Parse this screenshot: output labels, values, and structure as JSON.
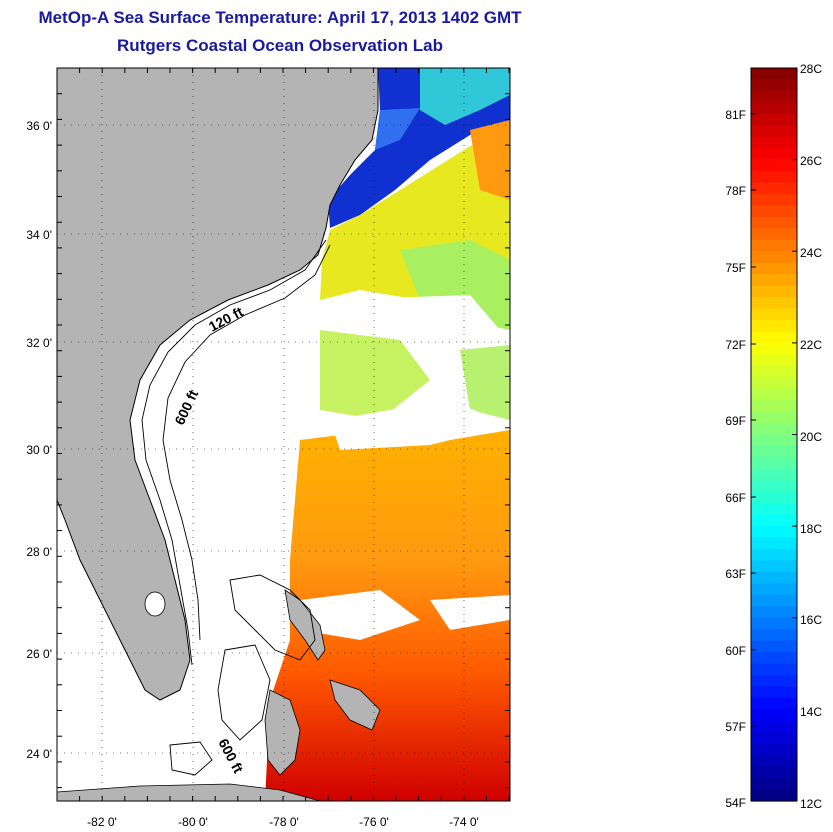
{
  "title": "MetOp-A Sea Surface Temperature:  April 17, 2013 1402 GMT",
  "subtitle": "Rutgers Coastal Ocean Observation Lab",
  "map": {
    "lon_range": [
      -83,
      -73
    ],
    "lat_range": [
      23,
      37
    ],
    "lon_ticks": [
      "-82 0'",
      "-80 0'",
      "-78 0'",
      "-76 0'",
      "-74 0'"
    ],
    "lat_ticks": [
      "36 0'",
      "34 0'",
      "32 0'",
      "30 0'",
      "28 0'",
      "26 0'",
      "24 0'"
    ],
    "contour_labels": [
      "120 ft",
      "600 ft",
      "600 ft"
    ],
    "land_color": "#b4b4b4"
  },
  "colorbar": {
    "celsius_labels": [
      "28C",
      "26C",
      "24C",
      "22C",
      "20C",
      "18C",
      "16C",
      "14C",
      "12C"
    ],
    "fahrenheit_labels": [
      "81F",
      "78F",
      "75F",
      "72F",
      "69F",
      "66F",
      "63F",
      "60F",
      "57F",
      "54F"
    ],
    "range_c": [
      12,
      28
    ],
    "colormap": "jet"
  }
}
